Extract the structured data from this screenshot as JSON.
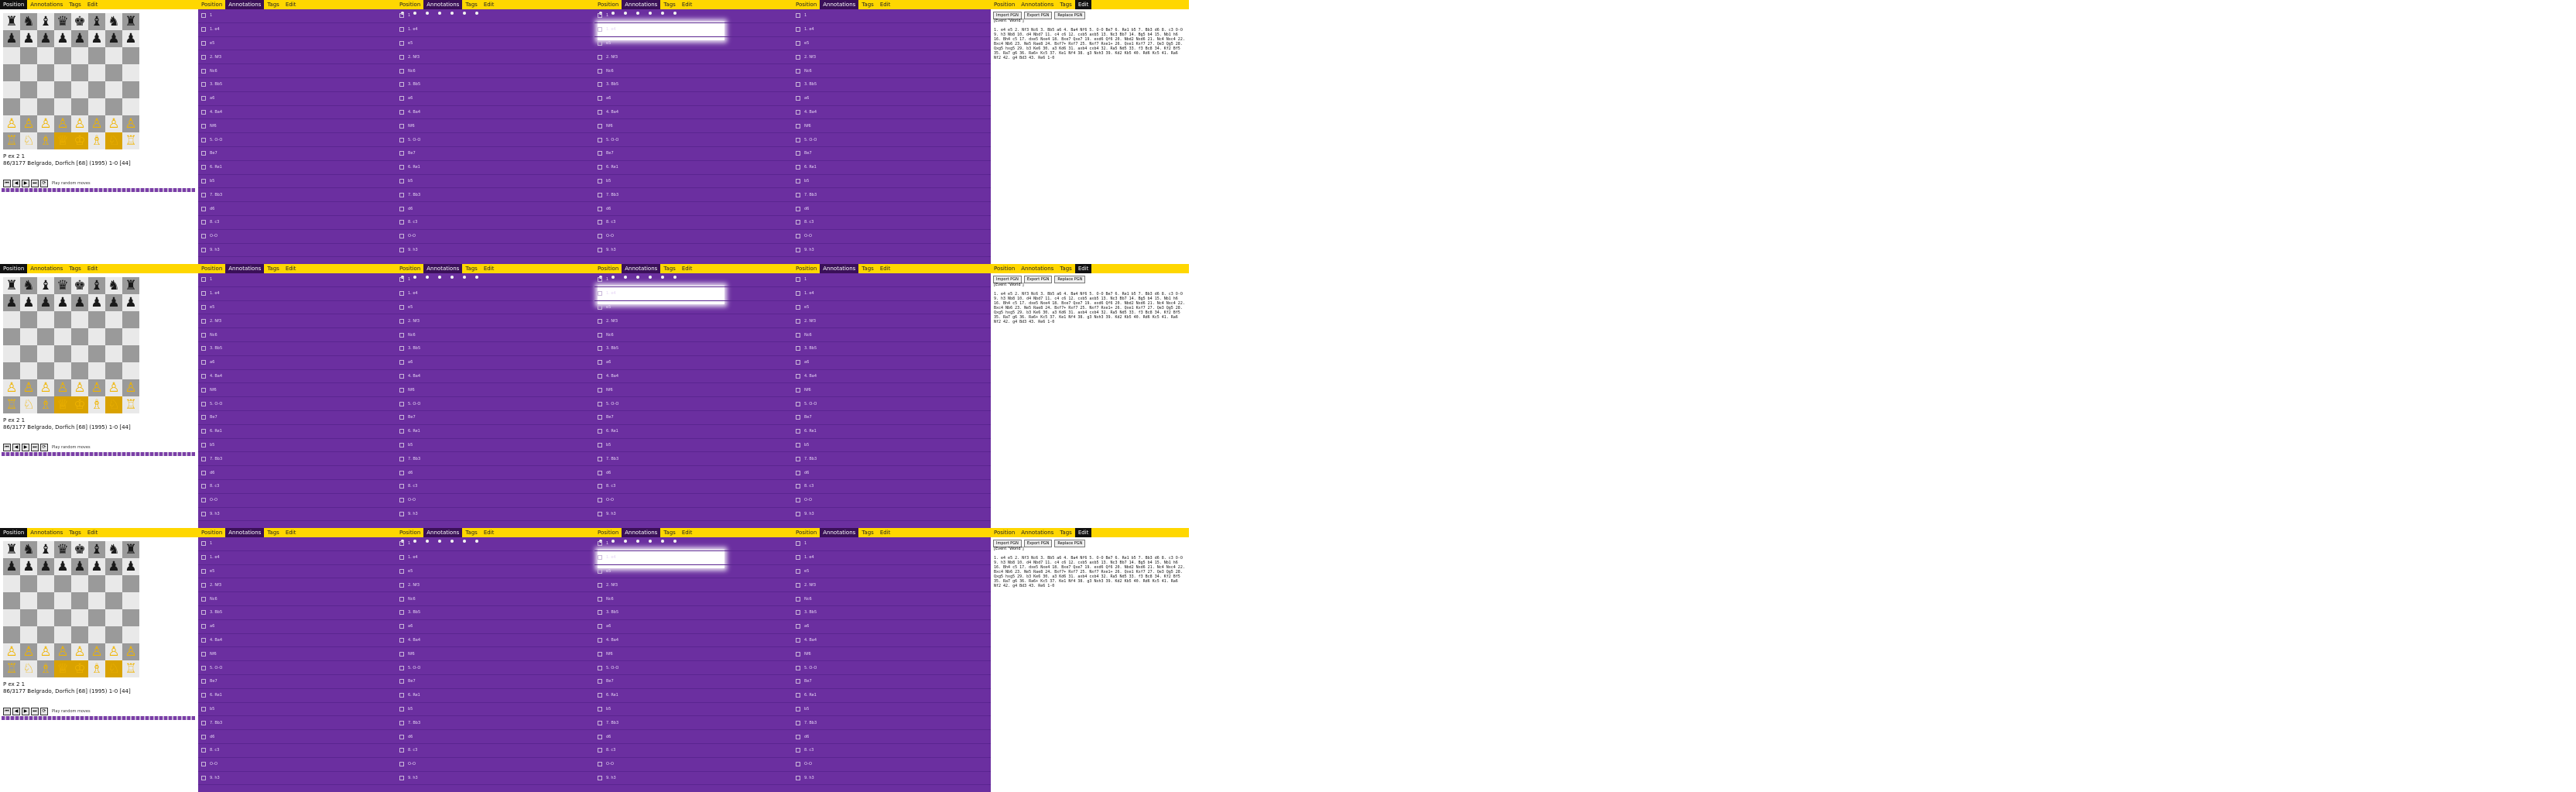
{
  "tabs": [
    "Position",
    "Annotations",
    "Tags",
    "Edit"
  ],
  "board": {
    "rows": [
      [
        "♜",
        "♞",
        "♝",
        "♛",
        "♚",
        "♝",
        "♞",
        "♜"
      ],
      [
        "♟",
        "♟",
        "♟",
        "♟",
        "♟",
        "♟",
        "♟",
        "♟"
      ],
      [
        "",
        "",
        "",
        "",
        "",
        "",
        "",
        ""
      ],
      [
        "",
        "",
        "",
        "",
        "",
        "",
        "",
        ""
      ],
      [
        "",
        "",
        "",
        "",
        "",
        "",
        "",
        ""
      ],
      [
        "",
        "",
        "",
        "",
        "",
        "",
        "",
        ""
      ],
      [
        "♙",
        "♙",
        "♙",
        "♙",
        "♙",
        "♙",
        "♙",
        "♙"
      ],
      [
        "♖",
        "♘",
        "♗",
        "♕",
        "♔",
        "♗",
        "♘",
        "♖"
      ]
    ]
  },
  "info": {
    "move_label": "P ex 2 1",
    "game_line": "86/3177 Belgrado, Dorfich [68] (1995) 1-0 [44]"
  },
  "controls": {
    "buttons": [
      "⏮",
      "◀",
      "▶",
      "⏭",
      "⟳"
    ],
    "label": "Play random moves"
  },
  "move_rows": [
    "1",
    "1. e4",
    "e5",
    "2. Nf3",
    "Nc6",
    "3. Bb5",
    "a6",
    "4. Ba4",
    "Nf6",
    "5. O-O",
    "Be7",
    "6. Re1",
    "b5",
    "7. Bb3",
    "d6",
    "8. c3",
    "O-O",
    "9. h3"
  ],
  "text_panel": {
    "buttons": [
      "Import PGN",
      "Export PGN",
      "Replace PGN"
    ],
    "pgn_header": "[Event \"World\"]",
    "pgn": "1. e4 e5 2. Nf3 Nc6 3. Bb5 a6 4. Ba4 Nf6 5. O-O Be7 6. Re1 b5 7. Bb3 d6 8. c3 O-O 9. h3 Nb8 10. d4 Nbd7 11. c4 c6 12. cxb5 axb5 13. Nc3 Bb7 14. Bg5 b4 15. Nb1 h6 16. Bh4 c5 17. dxe5 Nxe4 18. Bxe7 Qxe7 19. exd6 Qf6 20. Nbd2 Nxd6 21. Nc4 Nxc4 22. Bxc4 Nb6 23. Ne5 Rae8 24. Bxf7+ Rxf7 25. Nxf7 Rxe1+ 26. Qxe1 Kxf7 27. Qe3 Qg5 28. Qxg5 hxg5 29. b3 Ke6 30. a3 Kd6 31. axb4 cxb4 32. Ra5 Nd5 33. f3 Bc8 34. Kf2 Bf5 35. Ra7 g6 36. Ra6+ Kc5 37. Ke1 Nf4 38. g3 Nxh3 39. Kd2 Kb5 40. Rd6 Kc5 41. Ra6 Nf2 42. g4 Bd3 43. Re6 1-0"
  },
  "colors": {
    "tab_bar": "#ffd700",
    "move_list_bg": "#6b2fa0",
    "tab_active": "#3a1058",
    "white_piece": "#f0b400"
  }
}
